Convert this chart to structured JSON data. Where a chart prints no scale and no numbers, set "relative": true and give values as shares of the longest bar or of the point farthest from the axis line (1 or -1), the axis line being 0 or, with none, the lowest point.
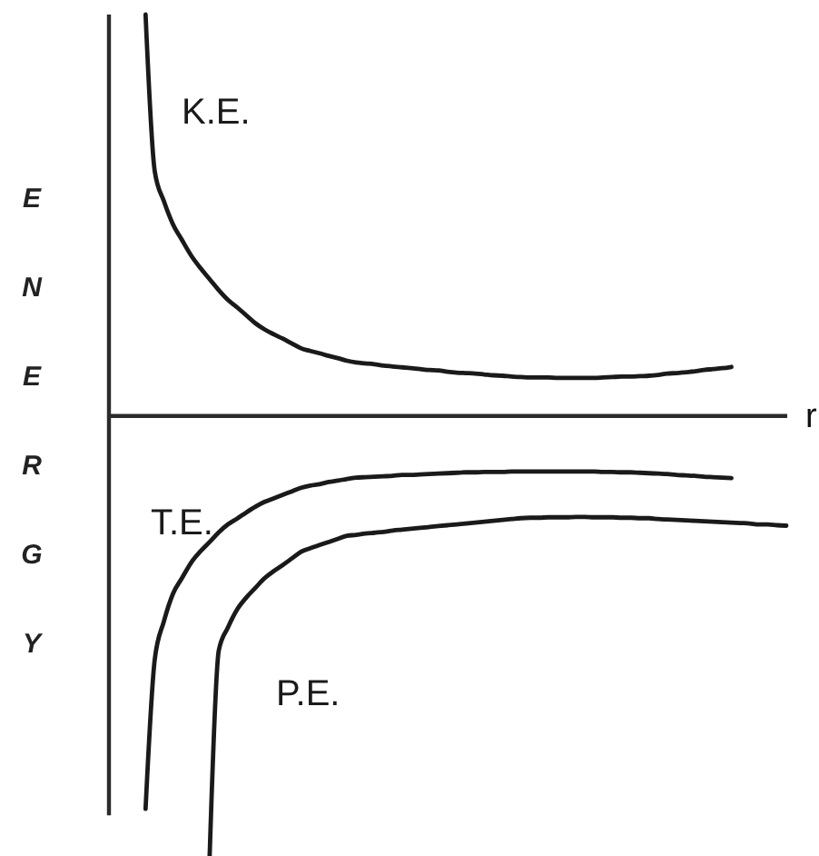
{
  "chart_data": {
    "type": "line",
    "relative": true,
    "ylabel": "ENERGY",
    "xlabel": "r",
    "categories": [
      null,
      null,
      null,
      null,
      null,
      null,
      null,
      null,
      null,
      null,
      null,
      null,
      null,
      null,
      null,
      null,
      null,
      null,
      null,
      null,
      null,
      null,
      null,
      null,
      null,
      null,
      null,
      null,
      null,
      null,
      null,
      null,
      null,
      null,
      null,
      null,
      null,
      null,
      null,
      null,
      null,
      null,
      null,
      null,
      null,
      null,
      null,
      null,
      null,
      null,
      null,
      null,
      null,
      null,
      null,
      null,
      null,
      null,
      null,
      null,
      null,
      null,
      null,
      null,
      null,
      null,
      null,
      null,
      null,
      null,
      null,
      null,
      null,
      null,
      null
    ],
    "series": [
      {
        "name": "K.E.",
        "color": "#1a1a1a",
        "values": [
          null,
          null,
          null,
          null,
          0.908,
          0.553,
          0.485,
          0.432,
          0.396,
          0.361,
          0.333,
          0.308,
          0.283,
          0.261,
          0.244,
          0.226,
          0.208,
          0.194,
          0.183,
          0.173,
          0.162,
          0.151,
          0.145,
          0.14,
          0.134,
          0.129,
          0.123,
          0.119,
          0.117,
          0.115,
          0.112,
          0.11,
          0.108,
          0.106,
          0.104,
          0.102,
          0.101,
          0.098,
          0.096,
          0.095,
          0.094,
          0.092,
          0.09,
          0.089,
          0.087,
          0.086,
          0.085,
          0.085,
          0.085,
          0.084,
          0.084,
          0.084,
          0.084,
          0.084,
          0.085,
          0.086,
          0.087,
          0.087,
          0.088,
          0.089,
          0.091,
          0.094,
          0.095,
          0.097,
          0.099,
          0.102,
          0.104,
          0.106,
          0.109,
          null,
          null,
          null,
          null,
          null,
          null
        ]
      },
      {
        "name": "T.E.",
        "color": "#1a1a1a",
        "values": [
          null,
          null,
          null,
          null,
          -0.893,
          -0.555,
          -0.468,
          -0.405,
          -0.369,
          -0.334,
          -0.309,
          -0.288,
          -0.266,
          -0.248,
          -0.235,
          -0.221,
          -0.208,
          -0.197,
          -0.189,
          -0.181,
          -0.173,
          -0.165,
          -0.16,
          -0.157,
          -0.152,
          -0.149,
          -0.145,
          -0.142,
          -0.141,
          -0.14,
          -0.139,
          -0.138,
          -0.136,
          -0.136,
          -0.135,
          -0.134,
          -0.133,
          -0.132,
          -0.131,
          -0.13,
          -0.13,
          -0.129,
          -0.129,
          -0.129,
          -0.128,
          -0.128,
          -0.128,
          -0.128,
          -0.128,
          -0.128,
          -0.128,
          -0.128,
          -0.128,
          -0.128,
          -0.129,
          -0.129,
          -0.13,
          -0.13,
          -0.131,
          -0.132,
          -0.133,
          -0.134,
          -0.136,
          -0.137,
          -0.138,
          -0.14,
          -0.141,
          -0.142,
          -0.143,
          null,
          null,
          null,
          null,
          null,
          null
        ]
      },
      {
        "name": "P.E.",
        "color": "#1a1a1a",
        "values": [
          null,
          null,
          null,
          null,
          null,
          null,
          null,
          null,
          null,
          null,
          null,
          -1,
          -0.534,
          -0.482,
          -0.441,
          -0.414,
          -0.392,
          -0.37,
          -0.354,
          -0.34,
          -0.325,
          -0.31,
          -0.302,
          -0.295,
          -0.288,
          -0.281,
          -0.274,
          -0.272,
          -0.269,
          -0.267,
          -0.265,
          -0.262,
          -0.26,
          -0.258,
          -0.256,
          -0.254,
          -0.252,
          -0.25,
          -0.248,
          -0.246,
          -0.244,
          -0.242,
          -0.24,
          -0.238,
          -0.236,
          -0.234,
          -0.233,
          -0.233,
          -0.232,
          -0.232,
          -0.232,
          -0.231,
          -0.231,
          -0.232,
          -0.232,
          -0.232,
          -0.233,
          -0.233,
          -0.234,
          -0.234,
          -0.236,
          -0.237,
          -0.238,
          -0.239,
          -0.24,
          -0.241,
          -0.242,
          -0.243,
          -0.244,
          -0.245,
          -0.246,
          -0.248,
          -0.248,
          -0.25,
          -0.251
        ]
      }
    ]
  }
}
